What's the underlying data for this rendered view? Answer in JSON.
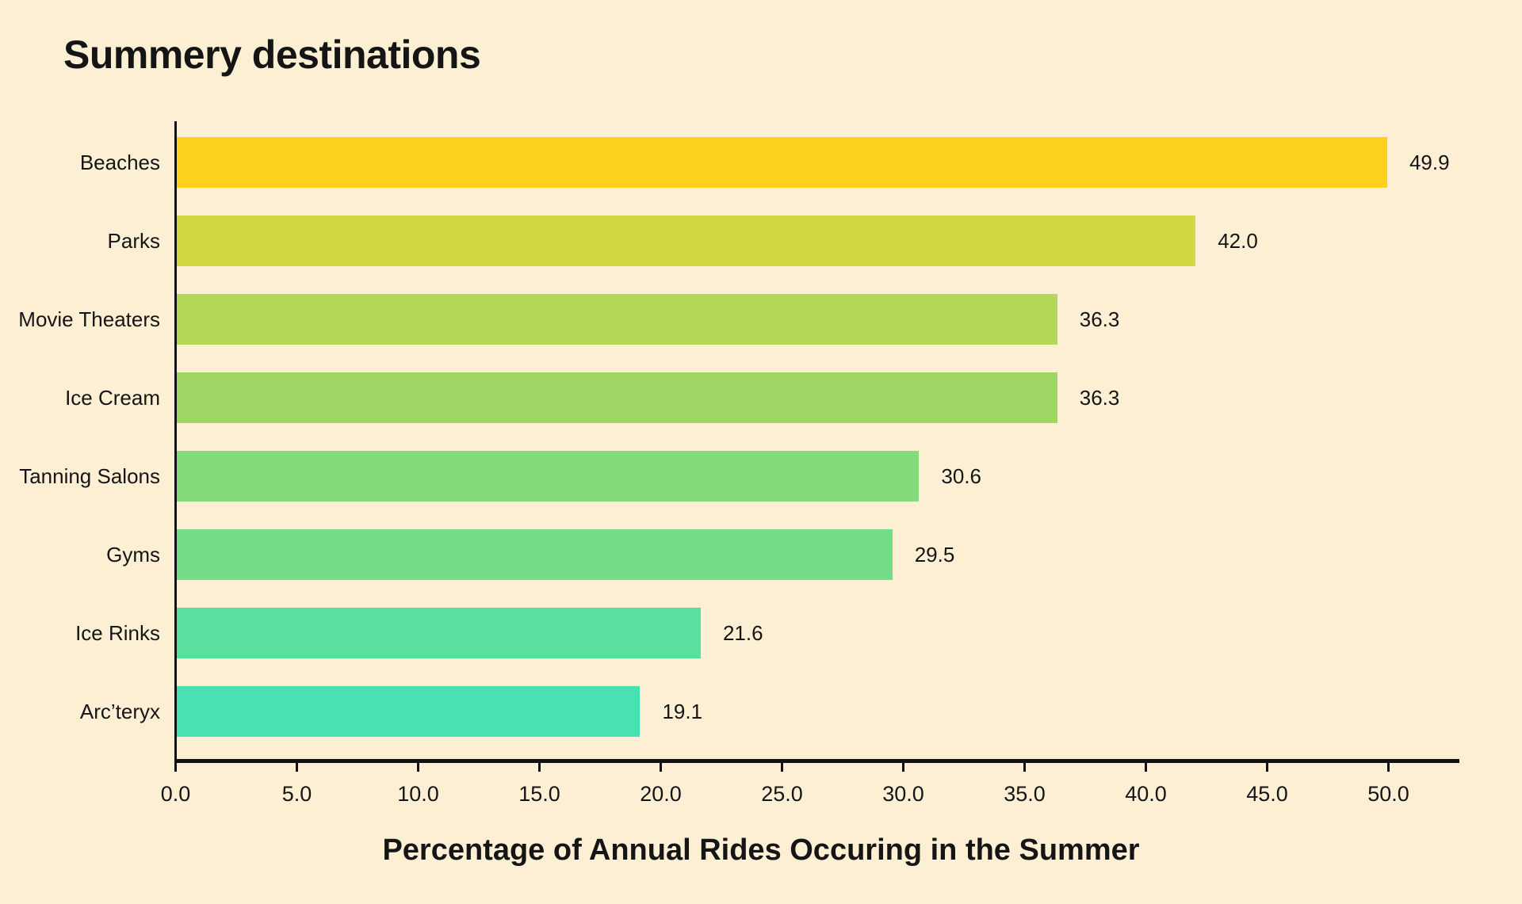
{
  "title": "Summery destinations",
  "chart_data": {
    "type": "bar",
    "orientation": "horizontal",
    "title": "Summery destinations",
    "xlabel": "Percentage of Annual Rides Occuring in the Summer",
    "ylabel": "",
    "categories": [
      "Beaches",
      "Parks",
      "Movie Theaters",
      "Ice Cream",
      "Tanning Salons",
      "Gyms",
      "Ice Rinks",
      "Arc’teryx"
    ],
    "values": [
      49.9,
      42.0,
      36.3,
      36.3,
      30.6,
      29.5,
      21.6,
      19.1
    ],
    "value_labels": [
      "49.9",
      "42.0",
      "36.3",
      "36.3",
      "30.6",
      "29.5",
      "21.6",
      "19.1"
    ],
    "bar_colors": [
      "#FDD21E",
      "#D0D844",
      "#B4D855",
      "#9ED763",
      "#84DB79",
      "#73DD88",
      "#5BDF9E",
      "#49E1B2"
    ],
    "x_ticks": [
      0.0,
      5.0,
      10.0,
      15.0,
      20.0,
      25.0,
      30.0,
      35.0,
      40.0,
      45.0,
      50.0
    ],
    "x_tick_labels": [
      "0.0",
      "5.0",
      "10.0",
      "15.0",
      "20.0",
      "25.0",
      "30.0",
      "35.0",
      "40.0",
      "45.0",
      "50.0"
    ],
    "xlim": [
      0,
      53
    ],
    "grid": "off",
    "legend": "none",
    "background_color": "#FCEFD4",
    "axis_color": "#111111",
    "text_color": "#151515"
  }
}
